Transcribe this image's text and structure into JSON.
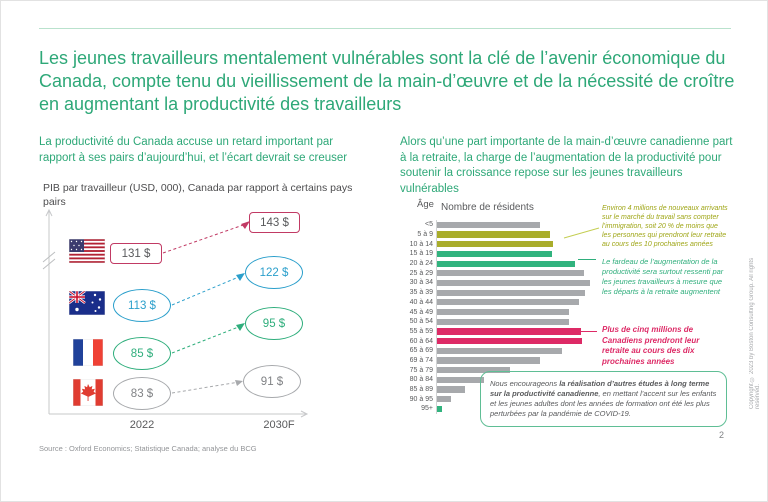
{
  "slide": {
    "title": "Les jeunes travailleurs mentalement vulnérables sont la clé de l’avenir économique du Canada, compte tenu du vieillissement de la main-d’œuvre et de la nécessité de croître en augmentant la productivité des travailleurs",
    "page_number": "2",
    "source": "Source : Oxford Economics; Statistique Canada; analyse du BCG",
    "copyright": "Copyright © 2023 by Boston Consulting Group. All rights reserved."
  },
  "left": {
    "headline": "La productivité du Canada accuse un retard important par rapport à ses pairs d’aujourd’hui, et l’écart devrait se creuser",
    "chart_subtitle": "PIB par travailleur (USD, 000), Canada par rapport à certains pays pairs"
  },
  "right": {
    "headline": "Alors qu’une part importante de la main-d’œuvre canadienne part à la retraite, la charge de l’augmentation de la productivité pour soutenir la croissance repose sur les jeunes travailleurs vulnérables",
    "age_label": "Âge",
    "residents_label": "Nombre de résidents"
  },
  "annotations": {
    "immigration": "Environ 4 millions de nouveaux arrivants sur le marché du travail sans compter l’immigration, soit 20 % de moins que les personnes qui prendront leur retraite au cours des 10 prochaines années",
    "burden": "Le fardeau de l’augmentation de la productivité sera surtout ressenti par les jeunes travailleurs à mesure que les départs à la retraite augmentent",
    "retirees": "Plus de cinq millions de Canadiens prendront leur retraite au cours des dix prochaines années",
    "note_prefix": "Nous encourageons ",
    "note_bold": "la réalisation d’autres études à long terme sur la productivité canadienne",
    "note_suffix": ", en mettant l’accent sur les enfants et les jeunes adultes dont les années de formation ont été les plus perturbées par la pandémie de COVID-19."
  },
  "chart_data": [
    {
      "type": "scatter",
      "title": "PIB par travailleur (USD, 000), Canada par rapport à certains pays pairs",
      "categories": [
        "États-Unis",
        "Australie",
        "France",
        "Canada"
      ],
      "category_icons": [
        "usa-flag-icon",
        "australia-flag-icon",
        "france-flag-icon",
        "canada-flag-icon"
      ],
      "x_ticks": [
        "2022",
        "2030F"
      ],
      "series": [
        {
          "name": "2022",
          "values": [
            131,
            113,
            85,
            83
          ]
        },
        {
          "name": "2030F",
          "values": [
            143,
            122,
            95,
            91
          ]
        }
      ],
      "display_2022": [
        "131 $",
        "113 $",
        "85 $",
        "83 $"
      ],
      "display_2030": [
        "143 $",
        "122 $",
        "95 $",
        "91 $"
      ],
      "category_colors": [
        "crimson",
        "blue",
        "green",
        "gray"
      ]
    },
    {
      "type": "bar",
      "orientation": "horizontal",
      "title": "Nombre de résidents",
      "ylabel": "Âge",
      "axis_values_shown": false,
      "unit": "relative length, longest bar = 100",
      "categories": [
        "<5",
        "5 à 9",
        "10 à 14",
        "15 à 19",
        "20 à 24",
        "25 à 29",
        "30 à 34",
        "35 à 39",
        "40 à 44",
        "45 à 49",
        "50 à 54",
        "55 à 59",
        "60 à 64",
        "65 à 69",
        "69 à 74",
        "75 à 79",
        "80 à 84",
        "85 à 89",
        "90 à 95",
        "95+"
      ],
      "values": [
        67,
        74,
        76,
        75,
        90,
        96,
        100,
        97,
        93,
        86,
        86,
        94,
        95,
        82,
        67,
        48,
        31,
        18,
        9,
        3
      ],
      "bar_colors": [
        "gray",
        "olive",
        "olive",
        "green",
        "green",
        "gray",
        "gray",
        "gray",
        "gray",
        "gray",
        "gray",
        "pink",
        "pink",
        "gray",
        "gray",
        "gray",
        "gray",
        "gray",
        "gray",
        "green"
      ]
    }
  ],
  "colors": {
    "accent_green": "#2EA878",
    "olive": "#A9AD2B",
    "green": "#31B37E",
    "pink": "#DD2A66",
    "gray": "#A7A9AC",
    "blue": "#2B9FCB",
    "crimson": "#C13A64"
  }
}
